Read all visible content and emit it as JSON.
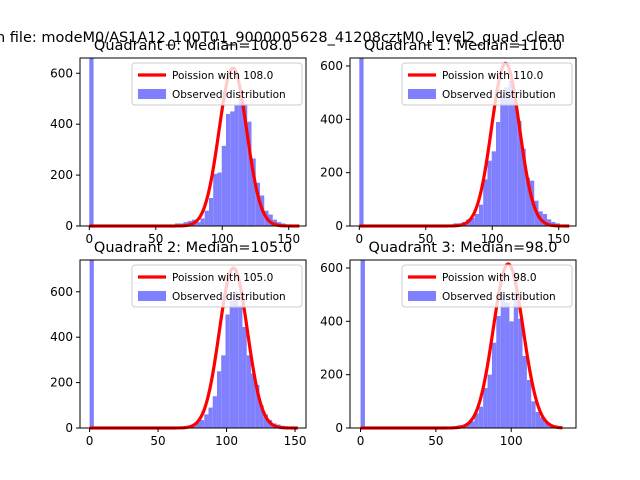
{
  "figure": {
    "suptitle": "n file: modeM0/AS1A12_100T01_9000005628_41208cztM0_level2_quad_clean"
  },
  "chart_data": [
    {
      "type": "histogram",
      "title": "Quadrant 0: Median=108.0",
      "xlim": [
        -7,
        163
      ],
      "ylim": [
        0,
        660
      ],
      "xticks": [
        0,
        50,
        100,
        150
      ],
      "yticks": [
        0,
        200,
        400,
        600
      ],
      "legend_position": "upper right",
      "legend": [
        "Poission with 108.0",
        "Observed distribution"
      ],
      "colors": {
        "fit": "#ff0000",
        "hist": "#8080ff"
      },
      "fit_curve": {
        "mean": 108.0,
        "peak": 620,
        "xrange": [
          0,
          158
        ]
      },
      "bins": [
        {
          "x0": 0,
          "x1": 3.2,
          "count": 660
        },
        {
          "x0": 58.0,
          "x1": 61.2,
          "count": 5
        },
        {
          "x0": 61.2,
          "x1": 64.4,
          "count": 5
        },
        {
          "x0": 64.4,
          "x1": 67.6,
          "count": 10
        },
        {
          "x0": 67.6,
          "x1": 70.8,
          "count": 10
        },
        {
          "x0": 70.8,
          "x1": 74.0,
          "count": 15
        },
        {
          "x0": 74.0,
          "x1": 77.2,
          "count": 20
        },
        {
          "x0": 77.2,
          "x1": 80.4,
          "count": 25
        },
        {
          "x0": 80.4,
          "x1": 83.6,
          "count": 15
        },
        {
          "x0": 83.6,
          "x1": 86.8,
          "count": 30
        },
        {
          "x0": 86.8,
          "x1": 90.0,
          "count": 60
        },
        {
          "x0": 90.0,
          "x1": 93.2,
          "count": 110
        },
        {
          "x0": 93.2,
          "x1": 96.4,
          "count": 205
        },
        {
          "x0": 96.4,
          "x1": 99.6,
          "count": 210
        },
        {
          "x0": 99.6,
          "x1": 102.8,
          "count": 315
        },
        {
          "x0": 102.8,
          "x1": 106.0,
          "count": 440
        },
        {
          "x0": 106.0,
          "x1": 109.2,
          "count": 450
        },
        {
          "x0": 109.2,
          "x1": 112.4,
          "count": 475
        },
        {
          "x0": 112.4,
          "x1": 115.6,
          "count": 500
        },
        {
          "x0": 115.6,
          "x1": 118.8,
          "count": 480
        },
        {
          "x0": 118.8,
          "x1": 122.0,
          "count": 410
        },
        {
          "x0": 122.0,
          "x1": 125.2,
          "count": 265
        },
        {
          "x0": 125.2,
          "x1": 128.4,
          "count": 170
        },
        {
          "x0": 128.4,
          "x1": 131.6,
          "count": 120
        },
        {
          "x0": 131.6,
          "x1": 134.8,
          "count": 60
        },
        {
          "x0": 134.8,
          "x1": 138.0,
          "count": 45
        },
        {
          "x0": 138.0,
          "x1": 141.2,
          "count": 25
        },
        {
          "x0": 141.2,
          "x1": 144.4,
          "count": 15
        },
        {
          "x0": 144.4,
          "x1": 147.6,
          "count": 10
        },
        {
          "x0": 147.6,
          "x1": 150.8,
          "count": 5
        }
      ]
    },
    {
      "type": "histogram",
      "title": "Quadrant 1: Median=110.0",
      "xlim": [
        -7,
        163
      ],
      "ylim": [
        0,
        630
      ],
      "xticks": [
        0,
        50,
        100,
        150
      ],
      "yticks": [
        0,
        200,
        400,
        600
      ],
      "legend_position": "upper right",
      "legend": [
        "Poission with 110.0",
        "Observed distribution"
      ],
      "colors": {
        "fit": "#ff0000",
        "hist": "#8080ff"
      },
      "fit_curve": {
        "mean": 110.0,
        "peak": 610,
        "xrange": [
          0,
          158
        ]
      },
      "bins": [
        {
          "x0": 0,
          "x1": 3.2,
          "count": 630
        },
        {
          "x0": 70.8,
          "x1": 74.0,
          "count": 10
        },
        {
          "x0": 74.0,
          "x1": 77.2,
          "count": 10
        },
        {
          "x0": 77.2,
          "x1": 80.4,
          "count": 15
        },
        {
          "x0": 80.4,
          "x1": 83.6,
          "count": 25
        },
        {
          "x0": 83.6,
          "x1": 86.8,
          "count": 30
        },
        {
          "x0": 86.8,
          "x1": 90.0,
          "count": 45
        },
        {
          "x0": 90.0,
          "x1": 93.2,
          "count": 80
        },
        {
          "x0": 93.2,
          "x1": 96.4,
          "count": 175
        },
        {
          "x0": 96.4,
          "x1": 99.6,
          "count": 245
        },
        {
          "x0": 99.6,
          "x1": 102.8,
          "count": 280
        },
        {
          "x0": 102.8,
          "x1": 106.0,
          "count": 390
        },
        {
          "x0": 106.0,
          "x1": 109.2,
          "count": 490
        },
        {
          "x0": 109.2,
          "x1": 112.4,
          "count": 520
        },
        {
          "x0": 112.4,
          "x1": 115.6,
          "count": 545
        },
        {
          "x0": 115.6,
          "x1": 118.8,
          "count": 470
        },
        {
          "x0": 118.8,
          "x1": 122.0,
          "count": 395
        },
        {
          "x0": 122.0,
          "x1": 125.2,
          "count": 290
        },
        {
          "x0": 125.2,
          "x1": 128.4,
          "count": 180
        },
        {
          "x0": 128.4,
          "x1": 131.6,
          "count": 170
        },
        {
          "x0": 131.6,
          "x1": 134.8,
          "count": 95
        },
        {
          "x0": 134.8,
          "x1": 138.0,
          "count": 55
        },
        {
          "x0": 138.0,
          "x1": 141.2,
          "count": 45
        },
        {
          "x0": 141.2,
          "x1": 144.4,
          "count": 25
        },
        {
          "x0": 144.4,
          "x1": 147.6,
          "count": 15
        },
        {
          "x0": 147.6,
          "x1": 150.8,
          "count": 10
        }
      ]
    },
    {
      "type": "histogram",
      "title": "Quadrant 2: Median=105.0",
      "xlim": [
        -7,
        158
      ],
      "ylim": [
        0,
        740
      ],
      "xticks": [
        0,
        50,
        100,
        150
      ],
      "yticks": [
        0,
        200,
        400,
        600
      ],
      "legend_position": "upper right",
      "legend": [
        "Poission with 105.0",
        "Observed distribution"
      ],
      "colors": {
        "fit": "#ff0000",
        "hist": "#8080ff"
      },
      "fit_curve": {
        "mean": 105.0,
        "peak": 705,
        "xrange": [
          0,
          152
        ]
      },
      "bins": [
        {
          "x0": 0,
          "x1": 3.1,
          "count": 740
        },
        {
          "x0": 62.0,
          "x1": 65.1,
          "count": 5
        },
        {
          "x0": 65.1,
          "x1": 68.2,
          "count": 5
        },
        {
          "x0": 68.2,
          "x1": 71.3,
          "count": 5
        },
        {
          "x0": 71.3,
          "x1": 74.4,
          "count": 10
        },
        {
          "x0": 74.4,
          "x1": 77.5,
          "count": 10
        },
        {
          "x0": 77.5,
          "x1": 80.6,
          "count": 25
        },
        {
          "x0": 80.6,
          "x1": 83.7,
          "count": 35
        },
        {
          "x0": 83.7,
          "x1": 86.8,
          "count": 60
        },
        {
          "x0": 86.8,
          "x1": 89.9,
          "count": 90
        },
        {
          "x0": 89.9,
          "x1": 93.0,
          "count": 140
        },
        {
          "x0": 93.0,
          "x1": 96.1,
          "count": 250
        },
        {
          "x0": 96.1,
          "x1": 99.2,
          "count": 320
        },
        {
          "x0": 99.2,
          "x1": 102.3,
          "count": 500
        },
        {
          "x0": 102.3,
          "x1": 105.4,
          "count": 560
        },
        {
          "x0": 105.4,
          "x1": 108.5,
          "count": 600
        },
        {
          "x0": 108.5,
          "x1": 111.6,
          "count": 540
        },
        {
          "x0": 111.6,
          "x1": 114.7,
          "count": 445
        },
        {
          "x0": 114.7,
          "x1": 117.8,
          "count": 320
        },
        {
          "x0": 117.8,
          "x1": 120.9,
          "count": 240
        },
        {
          "x0": 120.9,
          "x1": 124.0,
          "count": 190
        },
        {
          "x0": 124.0,
          "x1": 127.1,
          "count": 100
        },
        {
          "x0": 127.1,
          "x1": 130.2,
          "count": 60
        },
        {
          "x0": 130.2,
          "x1": 133.3,
          "count": 35
        },
        {
          "x0": 133.3,
          "x1": 136.4,
          "count": 20
        },
        {
          "x0": 136.4,
          "x1": 139.5,
          "count": 15
        },
        {
          "x0": 139.5,
          "x1": 142.6,
          "count": 10
        },
        {
          "x0": 142.6,
          "x1": 145.7,
          "count": 5
        }
      ]
    },
    {
      "type": "histogram",
      "title": "Quadrant 3: Median=98.0",
      "xlim": [
        -7,
        143
      ],
      "ylim": [
        0,
        630
      ],
      "xticks": [
        0,
        50,
        100
      ],
      "yticks": [
        0,
        200,
        400,
        600
      ],
      "legend_position": "upper right",
      "legend": [
        "Poission with 98.0",
        "Observed distribution"
      ],
      "colors": {
        "fit": "#ff0000",
        "hist": "#8080ff"
      },
      "fit_curve": {
        "mean": 98.0,
        "peak": 615,
        "xrange": [
          0,
          134
        ]
      },
      "bins": [
        {
          "x0": 0,
          "x1": 2.9,
          "count": 630
        },
        {
          "x0": 64.0,
          "x1": 66.9,
          "count": 10
        },
        {
          "x0": 66.9,
          "x1": 69.8,
          "count": 10
        },
        {
          "x0": 69.8,
          "x1": 72.7,
          "count": 15
        },
        {
          "x0": 72.7,
          "x1": 75.6,
          "count": 25
        },
        {
          "x0": 75.6,
          "x1": 78.5,
          "count": 55
        },
        {
          "x0": 78.5,
          "x1": 81.4,
          "count": 80
        },
        {
          "x0": 81.4,
          "x1": 84.3,
          "count": 150
        },
        {
          "x0": 84.3,
          "x1": 87.2,
          "count": 200
        },
        {
          "x0": 87.2,
          "x1": 90.1,
          "count": 320
        },
        {
          "x0": 90.1,
          "x1": 93.0,
          "count": 420
        },
        {
          "x0": 93.0,
          "x1": 95.9,
          "count": 510
        },
        {
          "x0": 95.9,
          "x1": 98.8,
          "count": 470
        },
        {
          "x0": 98.8,
          "x1": 101.7,
          "count": 400
        },
        {
          "x0": 101.7,
          "x1": 104.6,
          "count": 510
        },
        {
          "x0": 104.6,
          "x1": 107.5,
          "count": 410
        },
        {
          "x0": 107.5,
          "x1": 110.4,
          "count": 270
        },
        {
          "x0": 110.4,
          "x1": 113.3,
          "count": 180
        },
        {
          "x0": 113.3,
          "x1": 116.2,
          "count": 100
        },
        {
          "x0": 116.2,
          "x1": 119.1,
          "count": 60
        },
        {
          "x0": 119.1,
          "x1": 122.0,
          "count": 40
        },
        {
          "x0": 122.0,
          "x1": 124.9,
          "count": 20
        },
        {
          "x0": 124.9,
          "x1": 127.8,
          "count": 10
        },
        {
          "x0": 127.8,
          "x1": 130.7,
          "count": 5
        }
      ]
    }
  ]
}
